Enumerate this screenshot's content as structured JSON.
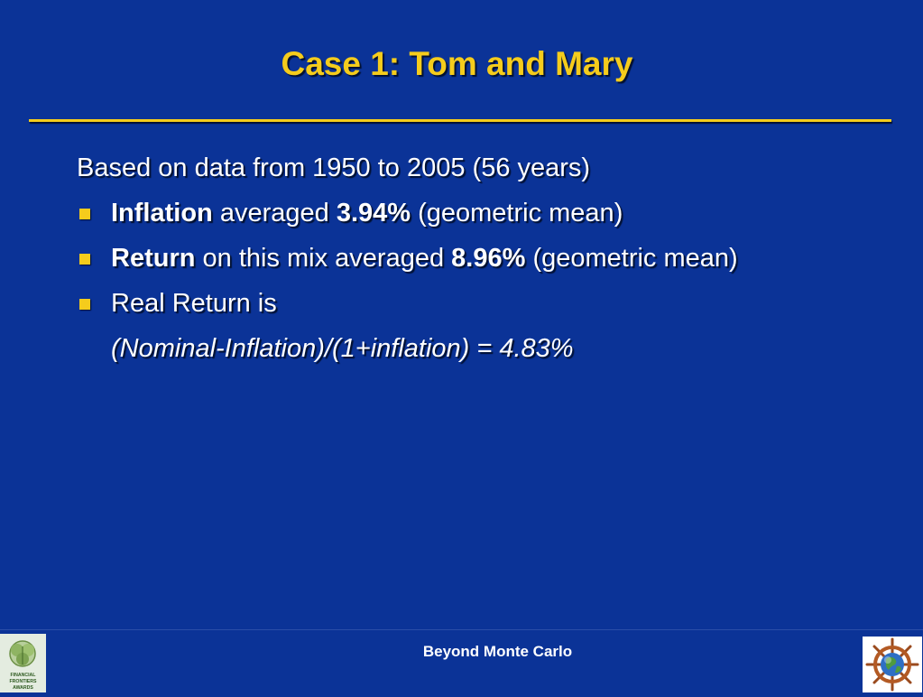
{
  "slide": {
    "title": "Case 1: Tom and Mary",
    "intro": "Based on data from 1950 to 2005 (56 years)",
    "bullets": [
      {
        "bold_lead": "Inflation",
        "text_1": " averaged ",
        "bold_value": "3.94%",
        "text_2": " (geometric mean)"
      },
      {
        "bold_lead": "Return",
        "text_1": " on this mix averaged ",
        "bold_value": "8.96%",
        "text_2": " (geometric mean)"
      },
      {
        "text": "Real Return is"
      }
    ],
    "formula": "(Nominal-Inflation)/(1+inflation) = 4.83%",
    "footer": "Beyond Monte Carlo"
  },
  "logos": {
    "left_lines": [
      "FINANCIAL",
      "FRONTIERS",
      "AWARDS"
    ],
    "left_icon": "financial-frontiers-awards-logo",
    "right_icon": "ship-wheel-globe-logo"
  },
  "colors": {
    "background": "#0b3397",
    "accent": "#f5cc1c",
    "text": "#ffffff"
  }
}
